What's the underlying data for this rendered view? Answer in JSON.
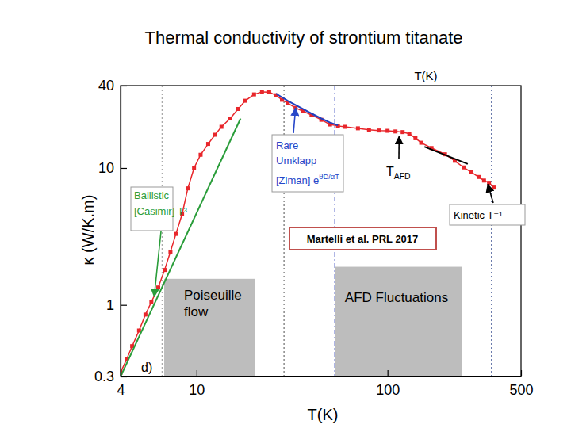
{
  "chart_data": {
    "type": "line",
    "title": "Thermal conductivity of strontium titanate",
    "xlabel": "T(K)",
    "ylabel": "κ (W/K.m)",
    "log": true,
    "grid": false,
    "xlim": [
      4,
      500
    ],
    "ylim": [
      0.3,
      40
    ],
    "xticks": [
      4,
      10,
      100,
      500
    ],
    "yticks": [
      0.3,
      1,
      10,
      40
    ],
    "series": [
      {
        "color": "#e8262b",
        "marker": "square",
        "line_style": "solid",
        "x": [
          4,
          4.3,
          4.6,
          5,
          5.4,
          5.8,
          6.3,
          6.8,
          7.3,
          7.8,
          8.4,
          9,
          9.7,
          10.5,
          11.5,
          12.5,
          13.5,
          15,
          16.5,
          18,
          20,
          22,
          24,
          26,
          28,
          30,
          33,
          36,
          40,
          45,
          50,
          55,
          60,
          70,
          80,
          90,
          100,
          110,
          120,
          130,
          140,
          150,
          170,
          200,
          225,
          250,
          275,
          300,
          320,
          340,
          360
        ],
        "values": [
          0.32,
          0.4,
          0.5,
          0.65,
          0.85,
          1.05,
          1.34,
          1.8,
          2.45,
          3.3,
          4.6,
          7.1,
          10,
          12.5,
          15,
          17.5,
          20,
          23,
          27,
          31,
          34.5,
          36,
          35.8,
          34,
          31.5,
          29.8,
          27.5,
          26,
          24.4,
          22.5,
          20.8,
          20.3,
          20,
          19.5,
          19,
          18.8,
          18.7,
          18.5,
          18.3,
          17.8,
          16.5,
          15.3,
          14,
          12.6,
          11.3,
          10.1,
          9.3,
          8.6,
          8.1,
          7.8,
          7.2
        ]
      },
      {
        "color": "#2a9d3a",
        "line_style": "solid",
        "x": [
          4,
          17
        ],
        "values": [
          0.3,
          23
        ]
      },
      {
        "color": "#2040c0",
        "line_style": "solid",
        "x": [
          26,
          30,
          36,
          40,
          45,
          50,
          55
        ],
        "values": [
          35,
          31,
          27,
          25,
          23,
          21.5,
          20.5
        ]
      },
      {
        "color": "#000000",
        "line_style": "solid",
        "x": [
          156,
          263
        ],
        "values": [
          14.3,
          10.7
        ]
      }
    ],
    "vlines": [
      {
        "x": 6.6,
        "color": "#aaaaaa",
        "line_style": "dotted"
      },
      {
        "x": 28.7,
        "color": "#777777",
        "line_style": "dotted"
      },
      {
        "x": 53,
        "color": "#3344bb",
        "line_style": "dashdot"
      },
      {
        "x": 350,
        "color": "#6677aa",
        "line_style": "dotted"
      }
    ],
    "regions": [
      {
        "label": [
          "Poiseuille",
          "flow"
        ],
        "x": [
          6.77,
          20.3
        ],
        "y": [
          0.3,
          1.55
        ],
        "color": "#bdbdbd"
      },
      {
        "label": [
          "AFD Fluctuations"
        ],
        "x": [
          53,
          246
        ],
        "y": [
          0.3,
          1.9
        ],
        "color": "#bdbdbd"
      }
    ],
    "annotations": [
      {
        "lines": [
          {
            "text": "Ballistic"
          },
          {
            "text": "[Casimir] T³"
          }
        ],
        "color": "#2a9d3a",
        "arrow": [
          6,
          1.15
        ]
      },
      {
        "lines": [
          {
            "text": "Rare"
          },
          {
            "text": "Umklapp"
          },
          {
            "text": "[Ziman] e",
            "sup": "θD/αT"
          }
        ],
        "color": "#2747c9",
        "arrow": [
          33,
          27.5
        ]
      },
      {
        "lines": [
          {
            "text": "T",
            "sub": "AFD"
          }
        ],
        "color": "#000000",
        "arrow": [
          115,
          17
        ]
      },
      {
        "lines": [
          {
            "text": "Kinetic T⁻¹"
          }
        ],
        "color": "#000000",
        "arrow": [
          335,
          7.6
        ]
      },
      {
        "lines": [
          {
            "text": "Martelli et al. PRL 2017"
          }
        ],
        "color": "#000000"
      },
      {
        "lines": [
          {
            "text": "d)"
          }
        ],
        "color": "#000000"
      },
      {
        "lines": [
          {
            "text": "T(K)"
          }
        ],
        "color": "#000000"
      }
    ]
  }
}
